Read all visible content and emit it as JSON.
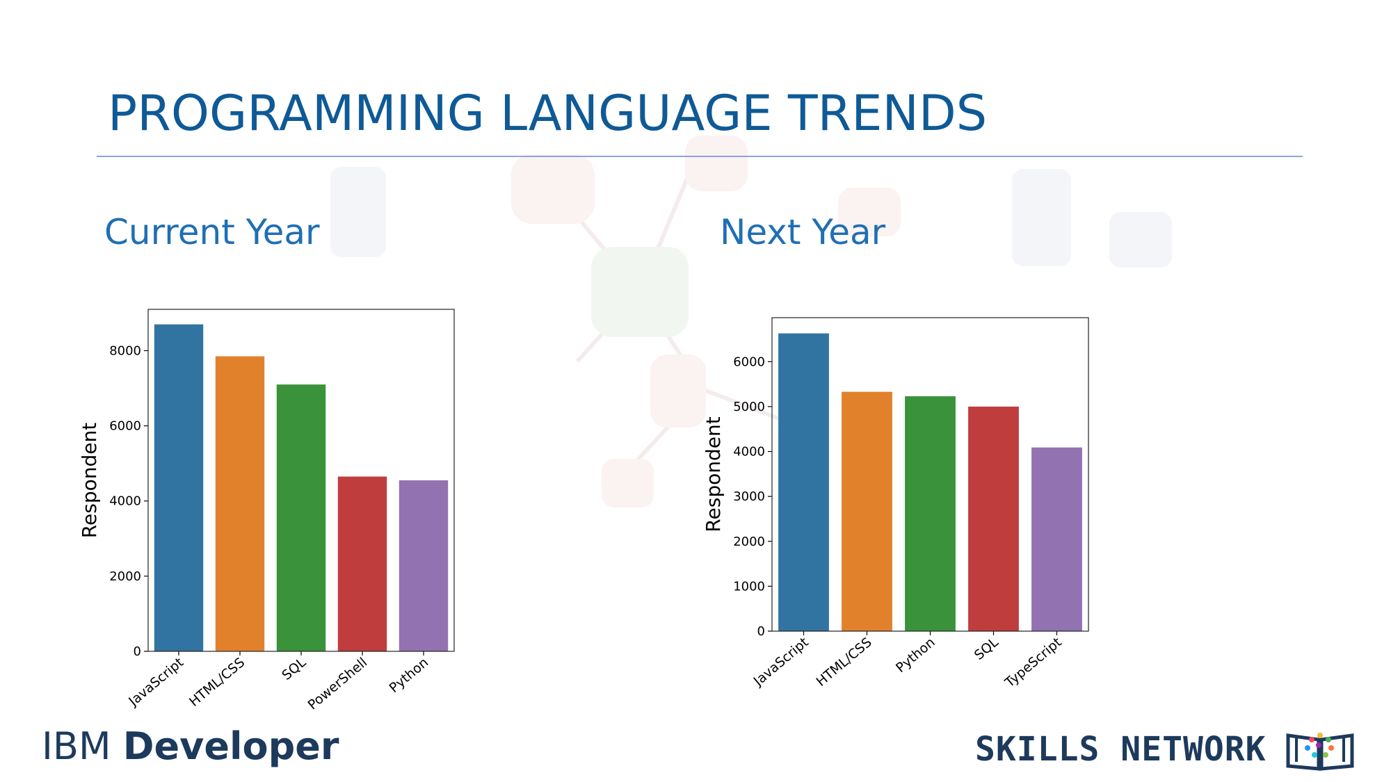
{
  "slide": {
    "title": "PROGRAMMING LANGUAGE TRENDS",
    "subtitles": {
      "current": "Current Year",
      "next": "Next Year"
    },
    "footer": {
      "ibm": "IBM",
      "developer": "Developer",
      "skills_network": "SKILLS NETWORK",
      "logo_icon": "skills-network-book-icon"
    }
  },
  "chart_data": [
    {
      "type": "bar",
      "title": "",
      "xlabel": "",
      "ylabel": "Respondent",
      "categories": [
        "JavaScript",
        "HTML/CSS",
        "SQL",
        "PowerShell",
        "Python"
      ],
      "values": [
        8700,
        7850,
        7100,
        4650,
        4550
      ],
      "colors": [
        "#3274a1",
        "#e1812c",
        "#3a923a",
        "#c03d3e",
        "#9372b2"
      ],
      "yticks": [
        0,
        2000,
        4000,
        6000,
        8000
      ],
      "ylim": [
        0,
        9100
      ],
      "grid": false,
      "legend": "none"
    },
    {
      "type": "bar",
      "title": "",
      "xlabel": "",
      "ylabel": "Respondent",
      "categories": [
        "JavaScript",
        "HTML/CSS",
        "Python",
        "SQL",
        "TypeScript"
      ],
      "values": [
        6630,
        5330,
        5230,
        5000,
        4090
      ],
      "colors": [
        "#3274a1",
        "#e1812c",
        "#3a923a",
        "#c03d3e",
        "#9372b2"
      ],
      "yticks": [
        0,
        1000,
        2000,
        3000,
        4000,
        5000,
        6000
      ],
      "ylim": [
        0,
        6980
      ],
      "grid": false,
      "legend": "none"
    }
  ]
}
